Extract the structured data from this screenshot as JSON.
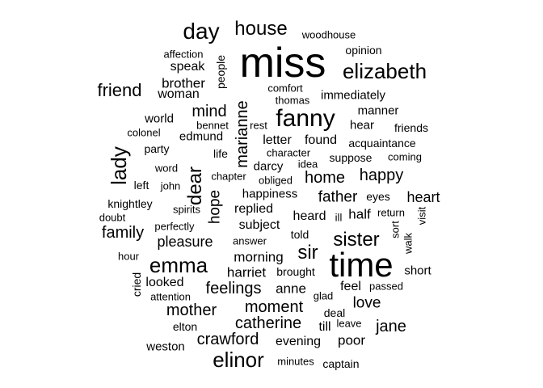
{
  "cloud": {
    "text_color": "#000000",
    "background": "#ffffff",
    "words": [
      {
        "text": "miss",
        "size": 52
      },
      {
        "text": "time",
        "size": 42
      },
      {
        "text": "fanny",
        "size": 30
      },
      {
        "text": "emma",
        "size": 26
      },
      {
        "text": "day",
        "size": 28
      },
      {
        "text": "elinor",
        "size": 26
      },
      {
        "text": "house",
        "size": 24
      },
      {
        "text": "elizabeth",
        "size": 26
      },
      {
        "text": "sister",
        "size": 24
      },
      {
        "text": "dear",
        "size": 24
      },
      {
        "text": "lady",
        "size": 26
      },
      {
        "text": "sir",
        "size": 24
      },
      {
        "text": "marianne",
        "size": 20
      },
      {
        "text": "friend",
        "size": 22
      },
      {
        "text": "mind",
        "size": 20
      },
      {
        "text": "catherine",
        "size": 20
      },
      {
        "text": "crawford",
        "size": 20
      },
      {
        "text": "moment",
        "size": 20
      },
      {
        "text": "feelings",
        "size": 20
      },
      {
        "text": "mother",
        "size": 20
      },
      {
        "text": "family",
        "size": 20
      },
      {
        "text": "home",
        "size": 20
      },
      {
        "text": "happy",
        "size": 20
      },
      {
        "text": "father",
        "size": 19
      },
      {
        "text": "hope",
        "size": 19
      },
      {
        "text": "jane",
        "size": 20
      },
      {
        "text": "love",
        "size": 19
      },
      {
        "text": "heart",
        "size": 18
      },
      {
        "text": "pleasure",
        "size": 18
      },
      {
        "text": "brother",
        "size": 17
      },
      {
        "text": "morning",
        "size": 17
      },
      {
        "text": "harriet",
        "size": 17
      },
      {
        "text": "anne",
        "size": 17
      },
      {
        "text": "evening",
        "size": 16
      },
      {
        "text": "poor",
        "size": 17
      },
      {
        "text": "letter",
        "size": 16
      },
      {
        "text": "found",
        "size": 16
      },
      {
        "text": "replied",
        "size": 16
      },
      {
        "text": "subject",
        "size": 16
      },
      {
        "text": "heard",
        "size": 16
      },
      {
        "text": "half",
        "size": 17
      },
      {
        "text": "feel",
        "size": 16
      },
      {
        "text": "till",
        "size": 16
      },
      {
        "text": "looked",
        "size": 16
      },
      {
        "text": "speak",
        "size": 16
      },
      {
        "text": "woman",
        "size": 16
      },
      {
        "text": "weston",
        "size": 15
      },
      {
        "text": "short",
        "size": 15
      },
      {
        "text": "happiness",
        "size": 15
      },
      {
        "text": "edmund",
        "size": 15
      },
      {
        "text": "manner",
        "size": 15
      },
      {
        "text": "hear",
        "size": 15
      },
      {
        "text": "world",
        "size": 15
      },
      {
        "text": "immediately",
        "size": 15
      },
      {
        "text": "acquaintance",
        "size": 14
      },
      {
        "text": "suppose",
        "size": 14
      },
      {
        "text": "opinion",
        "size": 14
      },
      {
        "text": "darcy",
        "size": 15
      },
      {
        "text": "knightley",
        "size": 14
      },
      {
        "text": "cried",
        "size": 14
      },
      {
        "text": "left",
        "size": 14
      },
      {
        "text": "party",
        "size": 14
      },
      {
        "text": "people",
        "size": 14
      },
      {
        "text": "affection",
        "size": 13
      },
      {
        "text": "friends",
        "size": 14
      },
      {
        "text": "comfort",
        "size": 13
      },
      {
        "text": "life",
        "size": 14
      },
      {
        "text": "spirits",
        "size": 13
      },
      {
        "text": "told",
        "size": 14
      },
      {
        "text": "brought",
        "size": 14
      },
      {
        "text": "elton",
        "size": 14
      },
      {
        "text": "deal",
        "size": 14
      },
      {
        "text": "captain",
        "size": 14
      },
      {
        "text": "minutes",
        "size": 13
      },
      {
        "text": "passed",
        "size": 13
      },
      {
        "text": "eyes",
        "size": 14
      },
      {
        "text": "return",
        "size": 13
      },
      {
        "text": "sort",
        "size": 13
      },
      {
        "text": "walk",
        "size": 13
      },
      {
        "text": "visit",
        "size": 13
      },
      {
        "text": "thomas",
        "size": 13
      },
      {
        "text": "bennet",
        "size": 13
      },
      {
        "text": "rest",
        "size": 13
      },
      {
        "text": "colonel",
        "size": 13
      },
      {
        "text": "character",
        "size": 13
      },
      {
        "text": "coming",
        "size": 13
      },
      {
        "text": "obliged",
        "size": 13
      },
      {
        "text": "idea",
        "size": 13
      },
      {
        "text": "chapter",
        "size": 13
      },
      {
        "text": "john",
        "size": 13
      },
      {
        "text": "word",
        "size": 13
      },
      {
        "text": "doubt",
        "size": 13
      },
      {
        "text": "perfectly",
        "size": 13
      },
      {
        "text": "answer",
        "size": 13
      },
      {
        "text": "hour",
        "size": 13
      },
      {
        "text": "attention",
        "size": 13
      },
      {
        "text": "glad",
        "size": 13
      },
      {
        "text": "leave",
        "size": 13
      },
      {
        "text": "ill",
        "size": 13
      },
      {
        "text": "woodhouse",
        "size": 13
      }
    ]
  }
}
